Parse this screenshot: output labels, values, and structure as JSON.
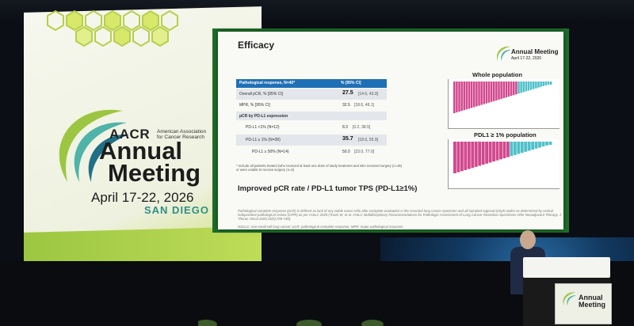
{
  "banner": {
    "logo": "AACR",
    "org_name": "American Association for Cancer Research",
    "event_line1": "Annual",
    "event_line2": "Meeting",
    "dates": "April 17-22, 2026",
    "city": "SAN DIEGO"
  },
  "slide": {
    "title": "Efficacy",
    "logo_line1": "Annual Meeting",
    "logo_line2": "April 17-22, 2026",
    "table": {
      "header_left": "Pathological response, N=40*",
      "header_right": "% [95% CI]",
      "rows": [
        {
          "label": "Overall pCR, % [95% CI]",
          "value": "27.5",
          "ci": "[14.6, 43.9]"
        },
        {
          "label": "MPR, % [95% CI]",
          "value": "32.5",
          "ci": "[18.6, 49.1]"
        },
        {
          "label": "pCR by PD-L1 expression",
          "value": "",
          "ci": ""
        },
        {
          "label": "PD-L1 <1% (N=12)",
          "value": "8.3",
          "ci": "[0.2, 38.5]"
        },
        {
          "label": "PD-L1 ≥ 1% (N=28)",
          "value": "35.7",
          "ci": "[18.6, 55.9]"
        },
        {
          "label": "PD-L1 ≥ 50% (N=14)",
          "value": "50.0",
          "ci": "[23.0, 77.0]"
        }
      ]
    },
    "footnote": "* Include all patients treated (who received at least one dose of study treatment and who received surgery (n=35) or were unable to receive surgery (n=5)",
    "conclusion": "Improved pCR rate / PD-L1 tumor TPS (PD-L1≥1%)",
    "definition": "Pathological complete response (pCR) is defined as lack of any viable tumor cells after complete evaluation in the resected lung cancer specimen and all sampled regional lymph nodes as determined by central independent pathological review (CIPR) as per IASLC 2020 (Travis W, et al. IASLC Multidisciplinary Recommendations for Pathologic Assessment of Lung Cancer Resection Specimens After Neoadjuvant Therapy. J Thorac Oncol 2020;15(5):709-740).",
    "abbrev": "NSCLC: non-small cell lung cancer; pCR: pathological complete response; MPR: major pathological response",
    "chart1_title": "Whole population",
    "chart2_title": "PDL1 ≥ 1% population"
  },
  "colors": {
    "bar_pink": "#d2488e",
    "bar_teal": "#4fc1c9",
    "table_header": "#1f6fb6",
    "brand_green": "#9cc641"
  },
  "podium": {
    "line1": "Annual",
    "line2": "Meeting"
  }
}
